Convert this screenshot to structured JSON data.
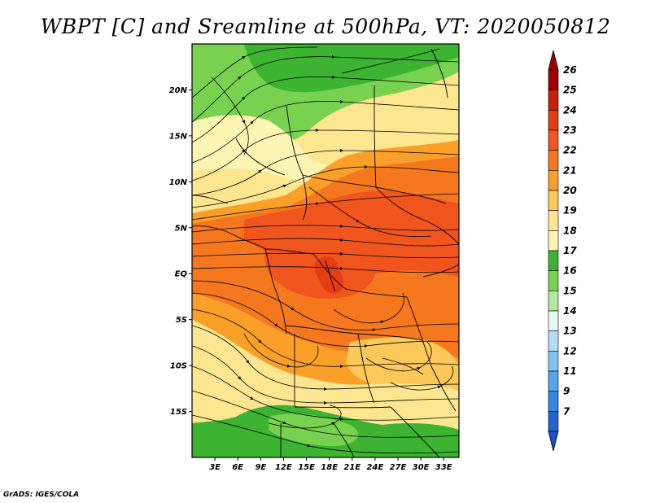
{
  "title": "WBPT [C] and Sreamline at 500hPa, VT: 2020050812",
  "credit": "GrADS: IGES/COLA",
  "map": {
    "lon_range": [
      0,
      35
    ],
    "lat_range": [
      -20,
      25
    ],
    "lat_ticks": [
      {
        "value": 20,
        "label": "20N"
      },
      {
        "value": 15,
        "label": "15N"
      },
      {
        "value": 10,
        "label": "10N"
      },
      {
        "value": 5,
        "label": "5N"
      },
      {
        "value": 0,
        "label": "EQ"
      },
      {
        "value": -5,
        "label": "5S"
      },
      {
        "value": -10,
        "label": "10S"
      },
      {
        "value": -15,
        "label": "15S"
      }
    ],
    "lon_ticks": [
      {
        "value": 3,
        "label": "3E"
      },
      {
        "value": 6,
        "label": "6E"
      },
      {
        "value": 9,
        "label": "9E"
      },
      {
        "value": 12,
        "label": "12E"
      },
      {
        "value": 15,
        "label": "15E"
      },
      {
        "value": 18,
        "label": "18E"
      },
      {
        "value": 21,
        "label": "21E"
      },
      {
        "value": 24,
        "label": "24E"
      },
      {
        "value": 27,
        "label": "27E"
      },
      {
        "value": 30,
        "label": "30E"
      },
      {
        "value": 33,
        "label": "33E"
      }
    ]
  },
  "colorbar": {
    "levels": [
      {
        "label": "26",
        "color": "#a00000"
      },
      {
        "label": "25",
        "color": "#c81e0a"
      },
      {
        "label": "24",
        "color": "#e63c14"
      },
      {
        "label": "23",
        "color": "#f0551e"
      },
      {
        "label": "22",
        "color": "#f5781e"
      },
      {
        "label": "21",
        "color": "#faa028"
      },
      {
        "label": "20",
        "color": "#fcc85a"
      },
      {
        "label": "19",
        "color": "#fde690"
      },
      {
        "label": "18",
        "color": "#fdf5b4"
      },
      {
        "label": "17",
        "color": "#3cb432"
      },
      {
        "label": "16",
        "color": "#78d250"
      },
      {
        "label": "15",
        "color": "#b4eaa0"
      },
      {
        "label": "14",
        "color": "#e6f8f0"
      },
      {
        "label": "13",
        "color": "#b4dcf8"
      },
      {
        "label": "12",
        "color": "#82c3f5"
      },
      {
        "label": "11",
        "color": "#55a5f0"
      },
      {
        "label": "9",
        "color": "#3287e6"
      },
      {
        "label": "7",
        "color": "#1e64d2"
      }
    ],
    "top_color": "#a00000",
    "bottom_color": "#1e50c8"
  }
}
